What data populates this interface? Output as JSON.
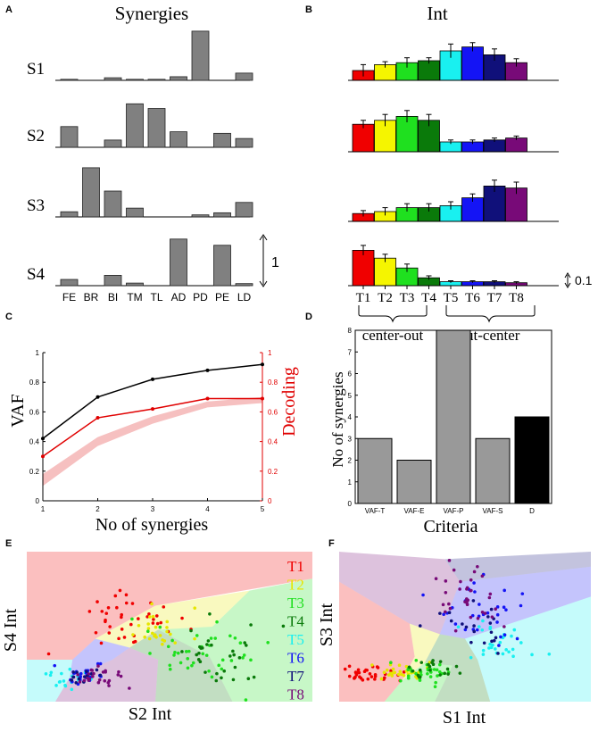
{
  "chart_data": [
    {
      "panel": "A",
      "type": "bar",
      "title": "Synergies",
      "categories": [
        "FE",
        "BR",
        "BI",
        "TM",
        "TL",
        "AD",
        "PD",
        "PE",
        "LD"
      ],
      "scale_bar_label": "1",
      "series": [
        {
          "name": "S1",
          "values": [
            0.02,
            0.0,
            0.05,
            0.02,
            0.02,
            0.07,
            0.95,
            0.0,
            0.14
          ]
        },
        {
          "name": "S2",
          "values": [
            0.4,
            0.0,
            0.14,
            0.84,
            0.75,
            0.3,
            0.0,
            0.27,
            0.17
          ]
        },
        {
          "name": "S3",
          "values": [
            0.1,
            0.95,
            0.5,
            0.17,
            0.0,
            0.0,
            0.04,
            0.08,
            0.28
          ]
        },
        {
          "name": "S4",
          "values": [
            0.12,
            0.0,
            0.2,
            0.05,
            0.0,
            0.9,
            0.0,
            0.78,
            0.04
          ]
        }
      ]
    },
    {
      "panel": "B",
      "type": "bar",
      "title": "Int",
      "categories": [
        "T1",
        "T2",
        "T3",
        "T4",
        "T5",
        "T6",
        "T7",
        "T8"
      ],
      "colors": [
        "#f00000",
        "#f5f500",
        "#1fe01f",
        "#0a7a0a",
        "#19f0f0",
        "#1414f5",
        "#10107a",
        "#780a78"
      ],
      "group_labels": [
        "center-out",
        "out-center"
      ],
      "scale_bar_label": "0.1",
      "series": [
        {
          "name": "S1",
          "values": [
            0.05,
            0.08,
            0.09,
            0.1,
            0.15,
            0.17,
            0.13,
            0.09
          ],
          "errors": [
            0.03,
            0.015,
            0.025,
            0.015,
            0.035,
            0.022,
            0.03,
            0.02
          ]
        },
        {
          "name": "S2",
          "values": [
            0.14,
            0.16,
            0.18,
            0.16,
            0.05,
            0.05,
            0.06,
            0.07
          ],
          "errors": [
            0.02,
            0.03,
            0.03,
            0.03,
            0.01,
            0.01,
            0.01,
            0.01
          ]
        },
        {
          "name": "S3",
          "values": [
            0.04,
            0.05,
            0.07,
            0.07,
            0.08,
            0.12,
            0.18,
            0.17
          ],
          "errors": [
            0.015,
            0.02,
            0.02,
            0.02,
            0.02,
            0.02,
            0.03,
            0.03
          ]
        },
        {
          "name": "S4",
          "values": [
            0.18,
            0.14,
            0.09,
            0.04,
            0.02,
            0.02,
            0.02,
            0.015
          ],
          "errors": [
            0.025,
            0.02,
            0.02,
            0.01,
            0.005,
            0.005,
            0.005,
            0.005
          ]
        }
      ]
    },
    {
      "panel": "C",
      "type": "line",
      "xlabel": "No of synergies",
      "ylabel": "VAF",
      "ylabel_right": "Decoding",
      "x": [
        1,
        2,
        3,
        4,
        5
      ],
      "xlim": [
        1,
        5
      ],
      "ylim": [
        0,
        1
      ],
      "yticks_left": [
        "0",
        "0.2",
        "0.4",
        "0.6",
        "0.8",
        "1"
      ],
      "yticks_right": [
        "0",
        "0.2",
        "0.4",
        "0.6",
        "0.8",
        "1"
      ],
      "series": [
        {
          "name": "VAF",
          "color": "#000000",
          "values": [
            0.42,
            0.7,
            0.82,
            0.88,
            0.92
          ]
        },
        {
          "name": "Decoding",
          "color": "#e00000",
          "values": [
            0.3,
            0.56,
            0.62,
            0.69,
            0.69
          ]
        },
        {
          "name": "Decoding chance band",
          "color": "#f6c0c0",
          "lower": [
            0.1,
            0.37,
            0.52,
            0.63,
            0.66
          ],
          "upper": [
            0.18,
            0.43,
            0.57,
            0.67,
            0.7
          ]
        }
      ]
    },
    {
      "panel": "D",
      "type": "bar",
      "xlabel": "Criteria",
      "ylabel": "No of synergies",
      "categories": [
        "VAF-T",
        "VAF-E",
        "VAF-P",
        "VAF-S",
        "D"
      ],
      "values": [
        3,
        2,
        8,
        3,
        4
      ],
      "colors": [
        "#999999",
        "#999999",
        "#999999",
        "#999999",
        "#000000"
      ],
      "ylim": [
        0,
        8
      ],
      "yticks": [
        "0",
        "1",
        "2",
        "3",
        "4",
        "5",
        "6",
        "7",
        "8"
      ]
    },
    {
      "panel": "E",
      "type": "scatter",
      "xlabel": "S2 Int",
      "ylabel": "S4 Int",
      "legend": [
        "T1",
        "T2",
        "T3",
        "T4",
        "T5",
        "T6",
        "T7",
        "T8"
      ],
      "legend_colors": [
        "#f00000",
        "#e6e600",
        "#1fe01f",
        "#0a7a0a",
        "#19f0f0",
        "#1414f5",
        "#10107a",
        "#780a78"
      ],
      "clusters": [
        {
          "target": "T1",
          "center": [
            0.37,
            0.45
          ],
          "spread": [
            0.09,
            0.11
          ],
          "count": 40
        },
        {
          "target": "T2",
          "center": [
            0.47,
            0.52
          ],
          "spread": [
            0.05,
            0.07
          ],
          "count": 25
        },
        {
          "target": "T3",
          "center": [
            0.6,
            0.66
          ],
          "spread": [
            0.1,
            0.1
          ],
          "count": 40
        },
        {
          "target": "T4",
          "center": [
            0.64,
            0.7
          ],
          "spread": [
            0.1,
            0.1
          ],
          "count": 30
        },
        {
          "target": "T5",
          "center": [
            0.17,
            0.84
          ],
          "spread": [
            0.04,
            0.04
          ],
          "count": 20
        },
        {
          "target": "T6",
          "center": [
            0.2,
            0.83
          ],
          "spread": [
            0.035,
            0.04
          ],
          "count": 25
        },
        {
          "target": "T7",
          "center": [
            0.19,
            0.82
          ],
          "spread": [
            0.03,
            0.03
          ],
          "count": 15
        },
        {
          "target": "T8",
          "center": [
            0.25,
            0.84
          ],
          "spread": [
            0.05,
            0.035
          ],
          "count": 25
        }
      ]
    },
    {
      "panel": "F",
      "type": "scatter",
      "xlabel": "S1 Int",
      "ylabel": "S3 Int",
      "clusters": [
        {
          "target": "T1",
          "center": [
            0.14,
            0.82
          ],
          "spread": [
            0.06,
            0.03
          ],
          "count": 35
        },
        {
          "target": "T2",
          "center": [
            0.24,
            0.8
          ],
          "spread": [
            0.06,
            0.03
          ],
          "count": 30
        },
        {
          "target": "T3",
          "center": [
            0.34,
            0.8
          ],
          "spread": [
            0.07,
            0.04
          ],
          "count": 30
        },
        {
          "target": "T4",
          "center": [
            0.38,
            0.78
          ],
          "spread": [
            0.06,
            0.03
          ],
          "count": 20
        },
        {
          "target": "T5",
          "center": [
            0.63,
            0.6
          ],
          "spread": [
            0.09,
            0.08
          ],
          "count": 30
        },
        {
          "target": "T6",
          "center": [
            0.6,
            0.42
          ],
          "spread": [
            0.09,
            0.14
          ],
          "count": 30
        },
        {
          "target": "T7",
          "center": [
            0.55,
            0.48
          ],
          "spread": [
            0.07,
            0.1
          ],
          "count": 20
        },
        {
          "target": "T8",
          "center": [
            0.5,
            0.33
          ],
          "spread": [
            0.08,
            0.12
          ],
          "count": 35
        }
      ]
    }
  ],
  "panel_letters": [
    "A",
    "B",
    "C",
    "D",
    "E",
    "F"
  ]
}
